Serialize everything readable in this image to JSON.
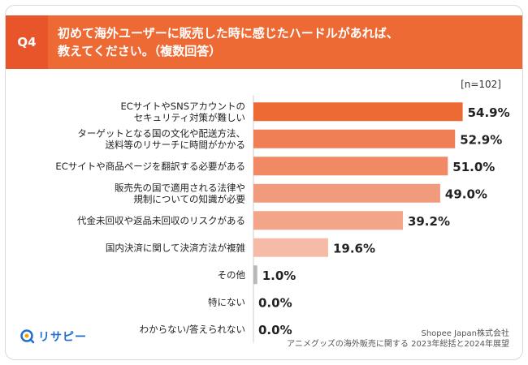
{
  "header": {
    "q_label": "Q4",
    "title_line1": "初めて海外ユーザーに販売した時に感じたハードルがあれば、",
    "title_line2": "教えてください。（複数回答）"
  },
  "sample_label": "[n=102]",
  "chart_data": {
    "type": "bar",
    "orientation": "horizontal",
    "categories": [
      "ECサイトやSNSアカウントの\nセキュリティ対策が難しい",
      "ターゲットとなる国の文化や配送方法、\n送料等のリサーチに時間がかかる",
      "ECサイトや商品ページを翻訳する必要がある",
      "販売先の国で適用される法律や\n規制についての知識が必要",
      "代金未回収や返品未回収のリスクがある",
      "国内決済に関して決済方法が複雑",
      "その他",
      "特にない",
      "わからない/答えられない"
    ],
    "values": [
      54.9,
      52.9,
      51.0,
      49.0,
      39.2,
      19.6,
      1.0,
      0.0,
      0.0
    ],
    "value_labels": [
      "54.9%",
      "52.9%",
      "51.0%",
      "49.0%",
      "39.2%",
      "19.6%",
      "1.0%",
      "0.0%",
      "0.0%"
    ],
    "bar_colors": [
      "#ee6a35",
      "#f07f56",
      "#f08964",
      "#f29a7c",
      "#f3a58a",
      "#f6bba6",
      "#b8b8b8",
      "#b8b8b8",
      "#b8b8b8"
    ],
    "xlim": [
      0,
      65
    ]
  },
  "footer": {
    "logo_text": "リサピー",
    "source_line1": "Shopee Japan株式会社",
    "source_line2": "アニメグッズの海外販売に関する 2023年総括と2024年展望"
  }
}
